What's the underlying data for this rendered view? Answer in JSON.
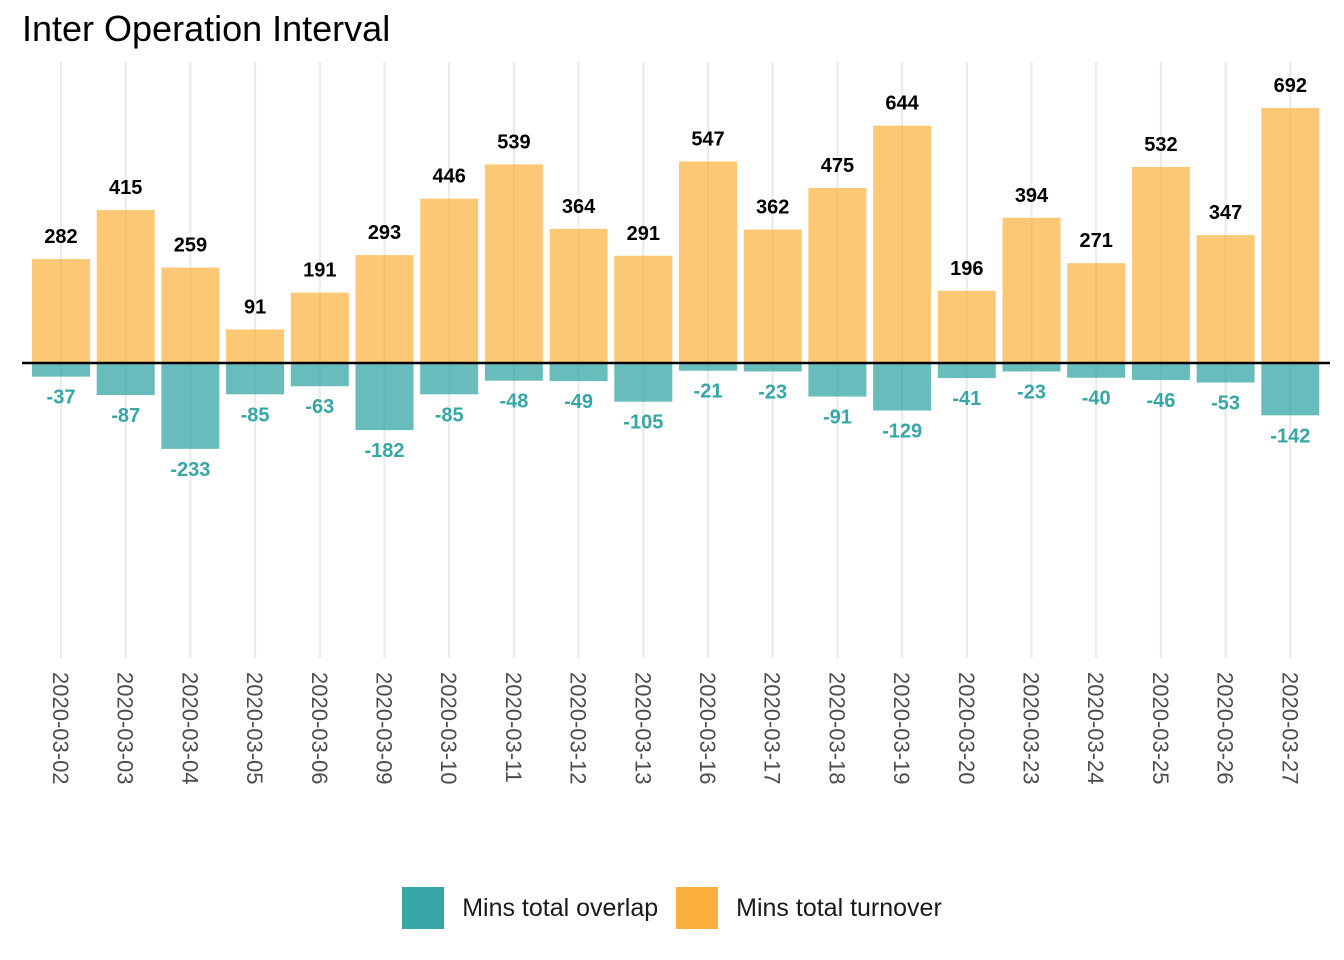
{
  "chart_data": {
    "type": "bar",
    "title": "Inter Operation Interval",
    "xlabel": "",
    "ylabel": "",
    "categories": [
      "2020-03-02",
      "2020-03-03",
      "2020-03-04",
      "2020-03-05",
      "2020-03-06",
      "2020-03-09",
      "2020-03-10",
      "2020-03-11",
      "2020-03-12",
      "2020-03-13",
      "2020-03-16",
      "2020-03-17",
      "2020-03-18",
      "2020-03-19",
      "2020-03-20",
      "2020-03-23",
      "2020-03-24",
      "2020-03-25",
      "2020-03-26",
      "2020-03-27"
    ],
    "series": [
      {
        "name": "Mins total overlap",
        "color": "#36A6A6",
        "values": [
          -37,
          -87,
          -233,
          -85,
          -63,
          -182,
          -85,
          -48,
          -49,
          -105,
          -21,
          -23,
          -91,
          -129,
          -41,
          -23,
          -40,
          -46,
          -53,
          -142
        ]
      },
      {
        "name": "Mins total turnover",
        "color": "#FBB03B",
        "values": [
          282,
          415,
          259,
          91,
          191,
          293,
          446,
          539,
          364,
          291,
          547,
          362,
          475,
          644,
          196,
          394,
          271,
          532,
          347,
          692
        ]
      }
    ],
    "ylim": [
      -800,
      800
    ],
    "grid": "vertical",
    "legend": "bottom",
    "stacked": true
  }
}
